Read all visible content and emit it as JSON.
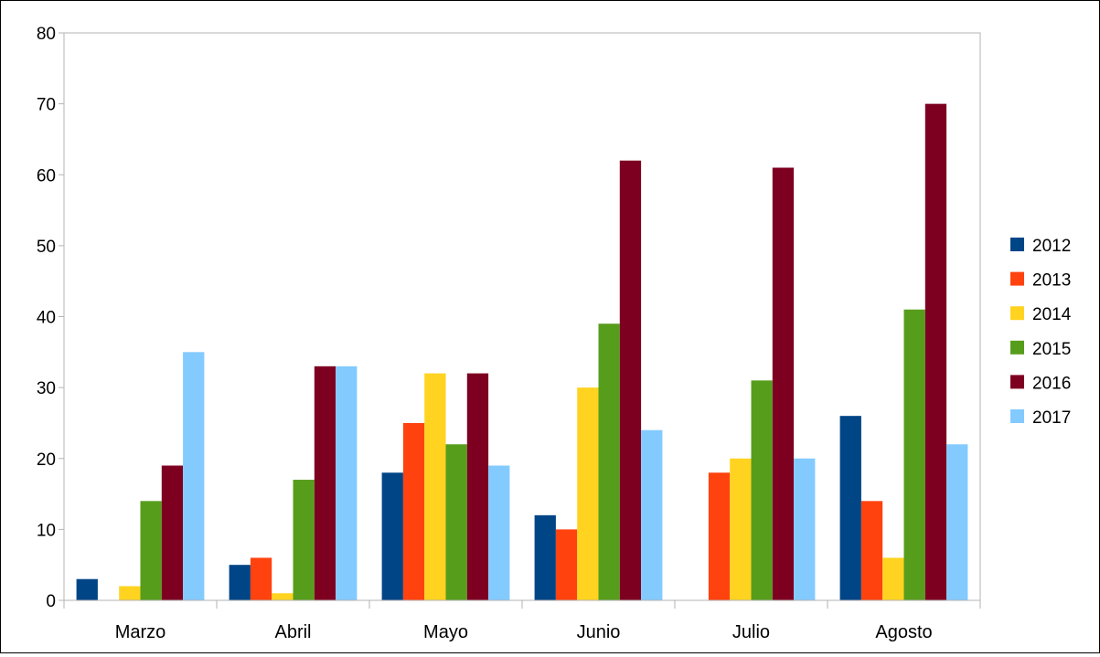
{
  "chart_data": {
    "type": "bar",
    "title": "",
    "xlabel": "",
    "ylabel": "",
    "ylim": [
      0,
      80
    ],
    "yticks": [
      0,
      10,
      20,
      30,
      40,
      50,
      60,
      70,
      80
    ],
    "grid": false,
    "legend_position": "right",
    "categories": [
      "Marzo",
      "Abril",
      "Mayo",
      "Junio",
      "Julio",
      "Agosto"
    ],
    "series": [
      {
        "name": "2012",
        "color": "#004586",
        "values": [
          3,
          5,
          18,
          12,
          0,
          26
        ]
      },
      {
        "name": "2013",
        "color": "#ff420e",
        "values": [
          0,
          6,
          25,
          10,
          18,
          14
        ]
      },
      {
        "name": "2014",
        "color": "#ffd320",
        "values": [
          2,
          1,
          32,
          30,
          20,
          6
        ]
      },
      {
        "name": "2015",
        "color": "#579d1c",
        "values": [
          14,
          17,
          22,
          39,
          31,
          41
        ]
      },
      {
        "name": "2016",
        "color": "#7e0021",
        "values": [
          19,
          33,
          32,
          62,
          61,
          70
        ]
      },
      {
        "name": "2017",
        "color": "#83caff",
        "values": [
          35,
          33,
          19,
          24,
          20,
          22
        ]
      }
    ]
  }
}
